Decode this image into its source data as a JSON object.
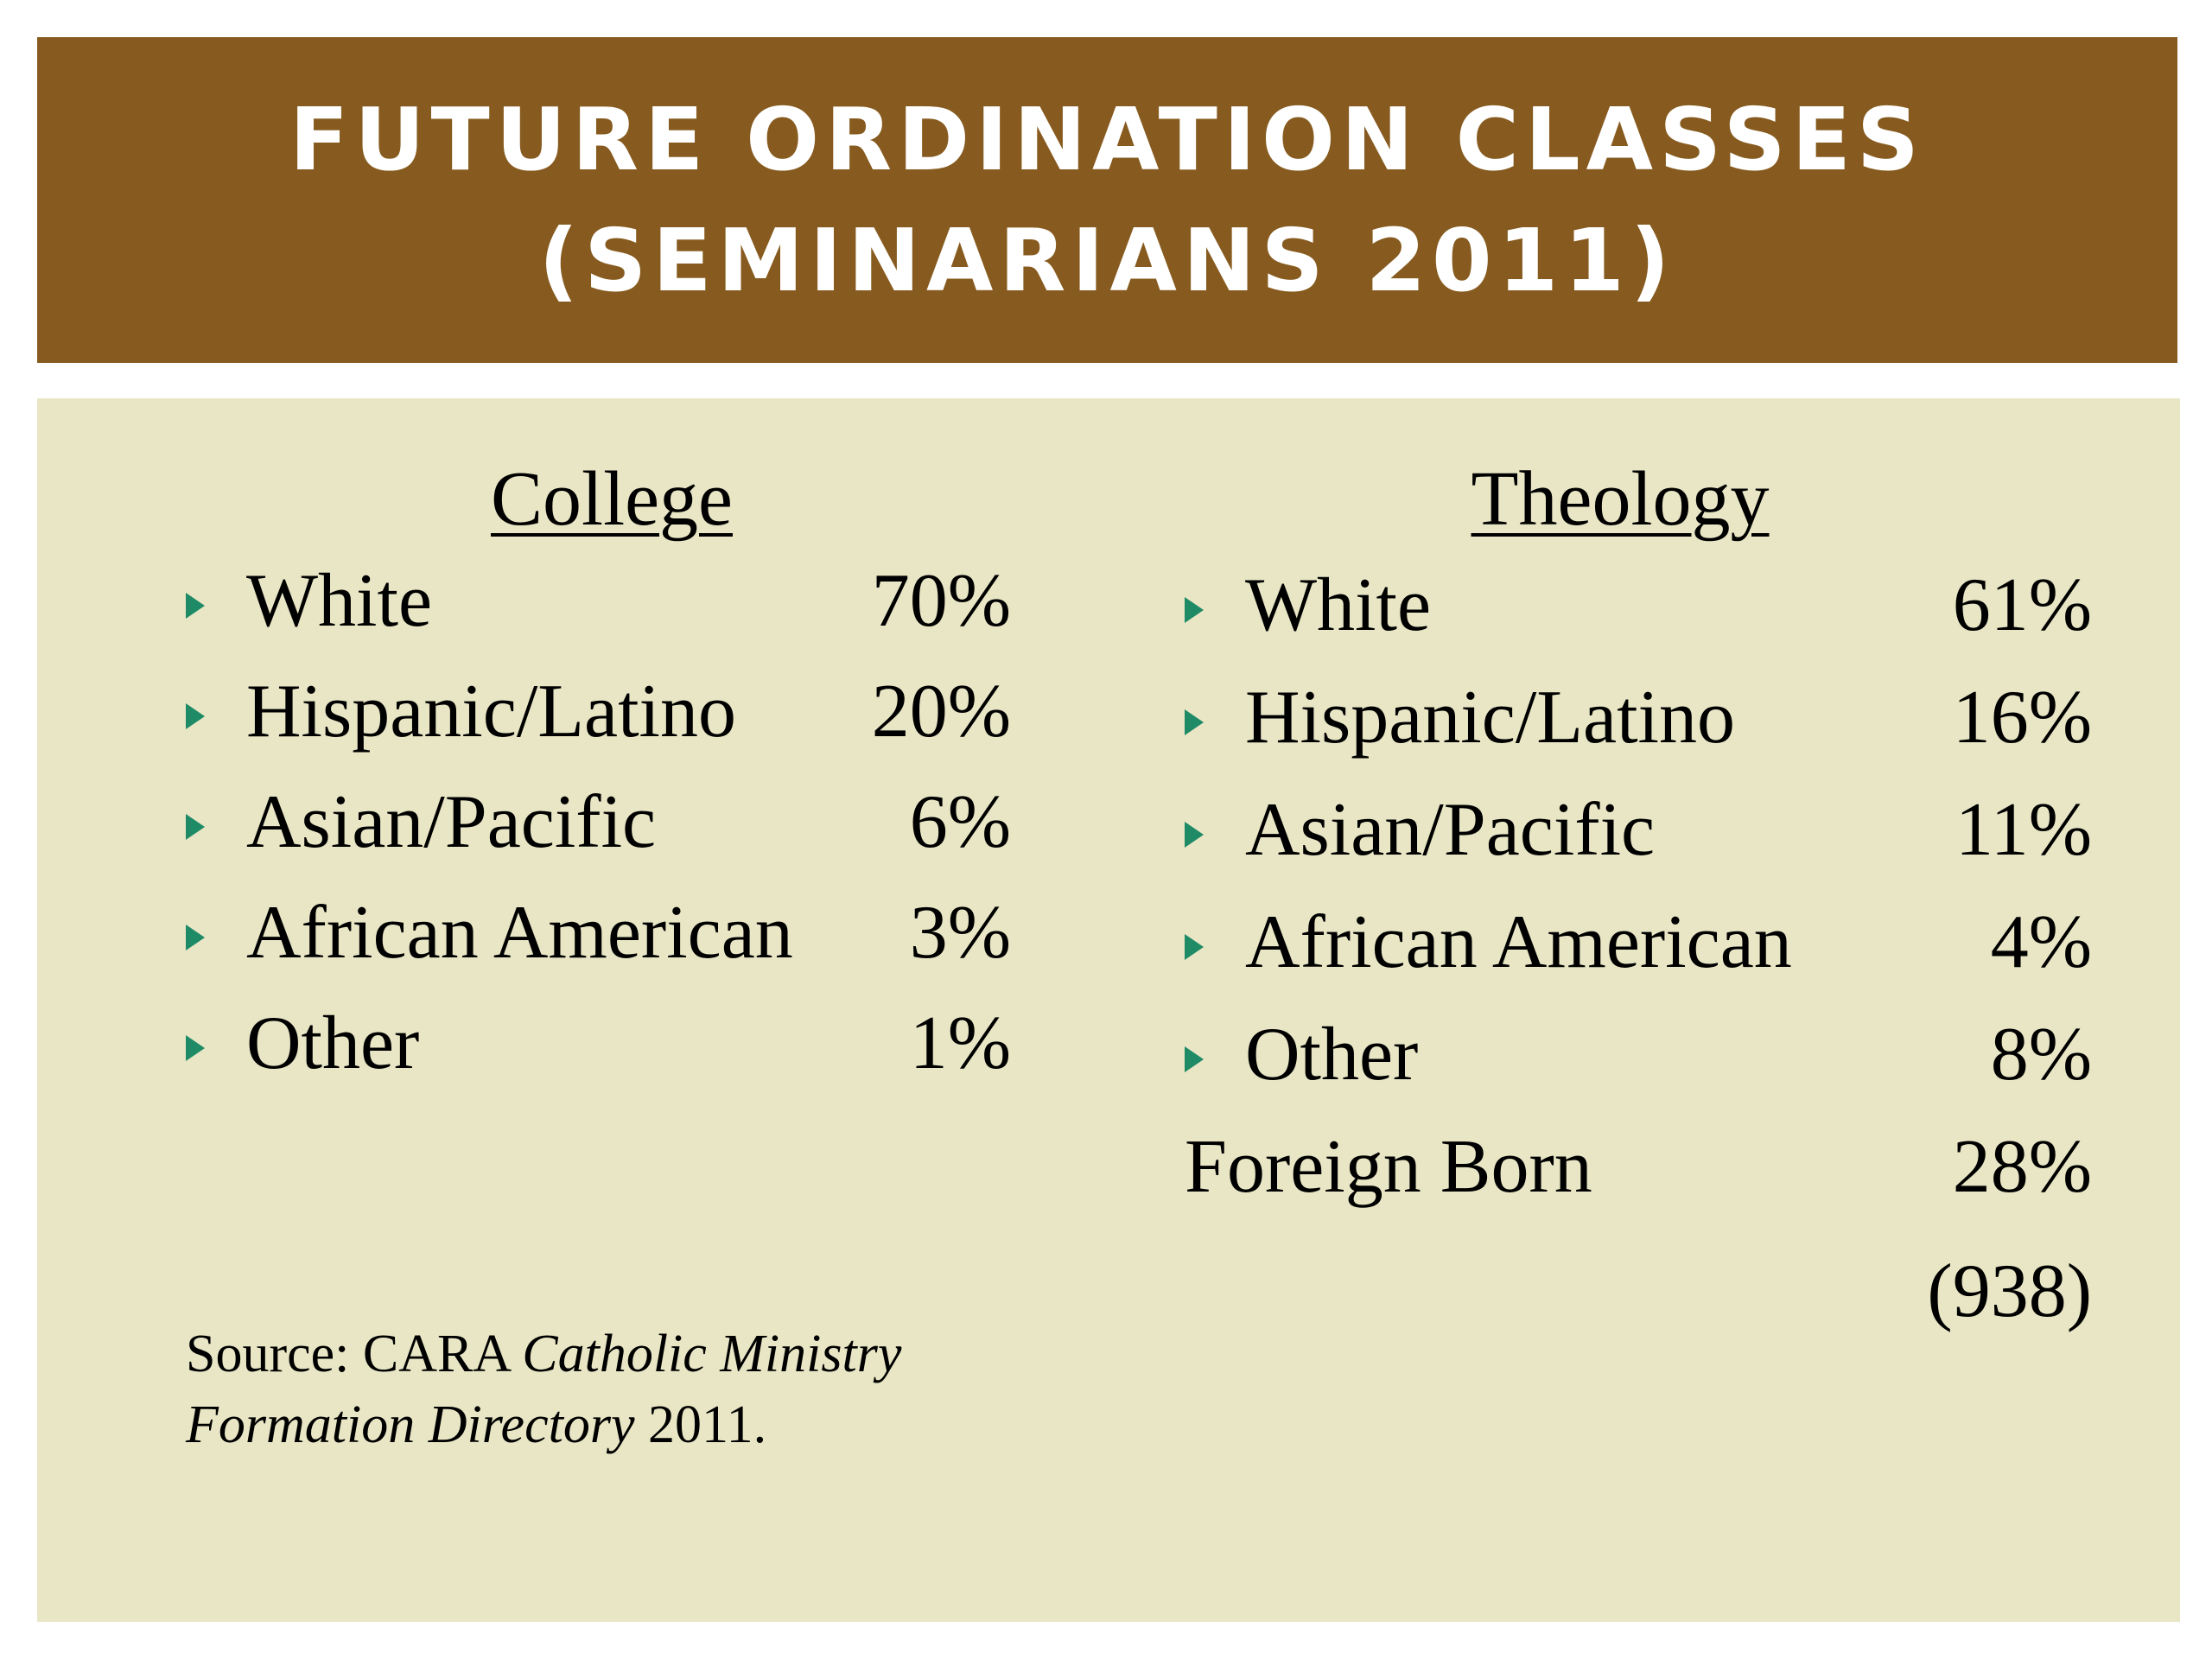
{
  "colors": {
    "title_bar": "#875b1f",
    "content_bg": "#e8e6c5",
    "bullet": "#1f8a66",
    "title_text": "#ffffff"
  },
  "title": {
    "line1": "FUTURE ORDINATION CLASSES",
    "line2": "(SEMINARIANS 2011)"
  },
  "college": {
    "heading": "College",
    "rows": [
      {
        "label": "White",
        "value": "70%"
      },
      {
        "label": "Hispanic/Latino",
        "value": "20%"
      },
      {
        "label": "Asian/Pacific",
        "value": "6%"
      },
      {
        "label": "African American",
        "value": "3%"
      },
      {
        "label": "Other",
        "value": "1%"
      }
    ]
  },
  "theology": {
    "heading": "Theology",
    "rows": [
      {
        "label": "White",
        "value": "61%"
      },
      {
        "label": "Hispanic/Latino",
        "value": "16%"
      },
      {
        "label": "Asian/Pacific",
        "value": "11%"
      },
      {
        "label": "African American",
        "value": "4%"
      },
      {
        "label": "Other",
        "value": "8%"
      }
    ],
    "foreign_born": {
      "label": "Foreign Born",
      "value": "28%"
    },
    "total": "(938)"
  },
  "source": {
    "prefix": "Source: CARA ",
    "italic1": "Catholic Ministry",
    "italic2": "Formation Directory",
    "suffix": " 2011."
  }
}
